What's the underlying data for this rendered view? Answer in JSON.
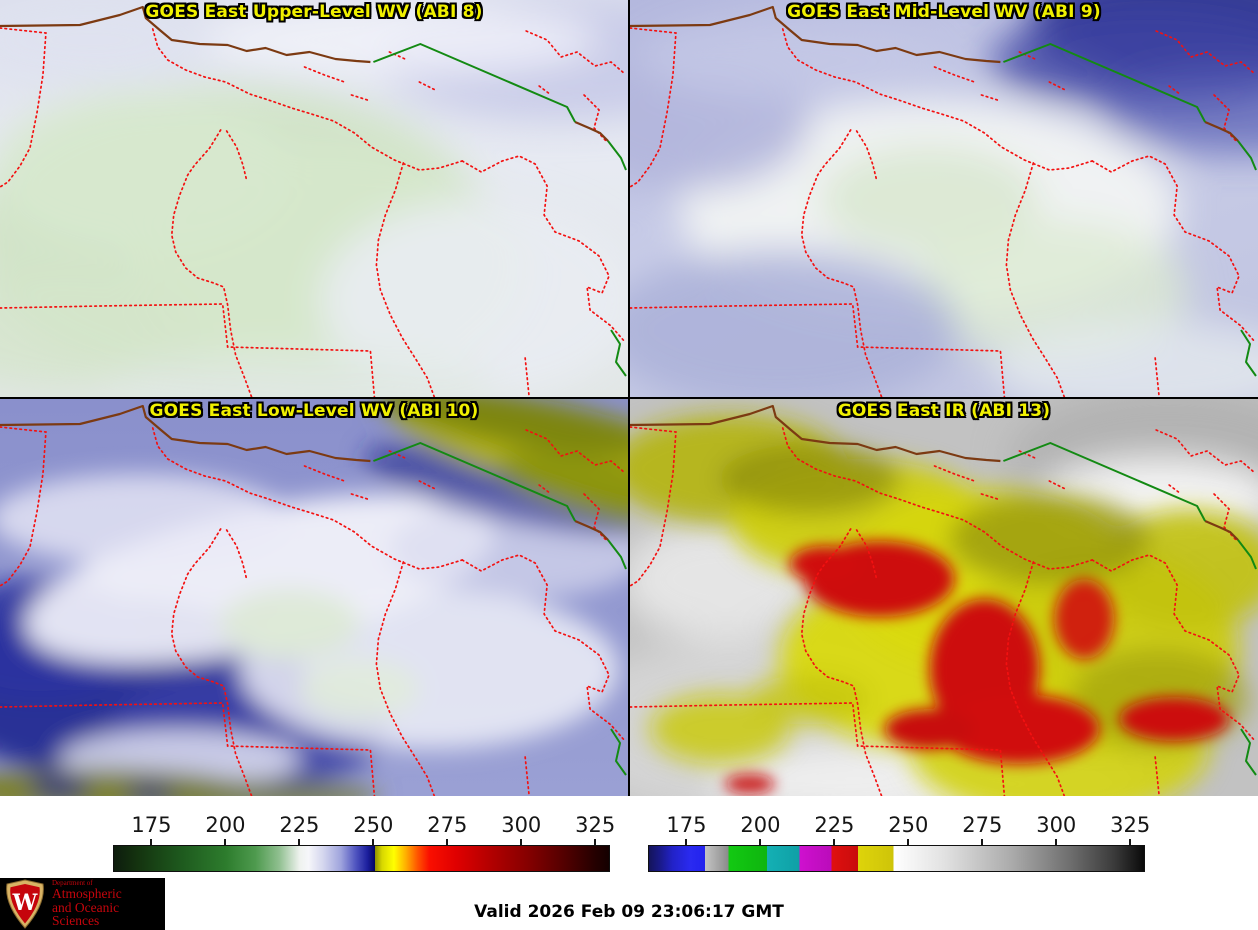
{
  "panels": [
    {
      "title": "GOES East Upper-Level WV (ABI 8)"
    },
    {
      "title": "GOES East Mid-Level WV (ABI 9)"
    },
    {
      "title": "GOES East Low-Level WV (ABI 10)"
    },
    {
      "title": "GOES East IR (ABI 13)"
    }
  ],
  "colorbars": [
    {
      "name": "water-vapor-temperature-scale",
      "range": [
        162,
        330
      ],
      "ticks": [
        "175",
        "200",
        "225",
        "250",
        "275",
        "300",
        "325"
      ],
      "stops": [
        [
          162,
          "#0d1c0d"
        ],
        [
          170,
          "#14330f"
        ],
        [
          185,
          "#1e5a1e"
        ],
        [
          200,
          "#2d7c2d"
        ],
        [
          210,
          "#4e9a4e"
        ],
        [
          218,
          "#8fbf8f"
        ],
        [
          225,
          "#eef2ee"
        ],
        [
          228,
          "#f6f6fa"
        ],
        [
          233,
          "#d4d6ee"
        ],
        [
          239,
          "#9fa4dd"
        ],
        [
          244,
          "#5055c0"
        ],
        [
          248,
          "#1c1f9e"
        ],
        [
          250.5,
          "#050563"
        ],
        [
          250.5,
          "#8f8f00"
        ],
        [
          253,
          "#d8d800"
        ],
        [
          257,
          "#ffff00"
        ],
        [
          261,
          "#ffb000"
        ],
        [
          265,
          "#ff5500"
        ],
        [
          269,
          "#fa0f00"
        ],
        [
          278,
          "#e00000"
        ],
        [
          290,
          "#b20000"
        ],
        [
          302,
          "#870000"
        ],
        [
          315,
          "#520000"
        ],
        [
          325,
          "#260000"
        ],
        [
          330,
          "#140000"
        ]
      ]
    },
    {
      "name": "infrared-temperature-scale",
      "range": [
        162,
        330
      ],
      "ticks": [
        "175",
        "200",
        "225",
        "250",
        "275",
        "300",
        "325"
      ],
      "stops": [
        [
          162,
          "#14145a"
        ],
        [
          166,
          "#1a1a8c"
        ],
        [
          170,
          "#2222c8"
        ],
        [
          176,
          "#2a2af0"
        ],
        [
          181,
          "#2222ee"
        ],
        [
          181,
          "#c4c4c4"
        ],
        [
          185,
          "#a8a8a8"
        ],
        [
          189,
          "#8a8a8a"
        ],
        [
          189,
          "#12c912"
        ],
        [
          202,
          "#0fb50f"
        ],
        [
          202,
          "#14b0b4"
        ],
        [
          213,
          "#0fa0a6"
        ],
        [
          213,
          "#cf10cf"
        ],
        [
          224,
          "#ba0cba"
        ],
        [
          224,
          "#e01010"
        ],
        [
          233,
          "#c80c0c"
        ],
        [
          233,
          "#ded40a"
        ],
        [
          245,
          "#cec409"
        ],
        [
          245,
          "#ffffff"
        ],
        [
          262,
          "#e2e2e2"
        ],
        [
          285,
          "#ababab"
        ],
        [
          305,
          "#6e6e6e"
        ],
        [
          320,
          "#3a3a3a"
        ],
        [
          330,
          "#0a0a0a"
        ]
      ]
    }
  ],
  "footer": {
    "valid_time": "Valid 2026 Feb 09 23:06:17 GMT",
    "logo": {
      "dept_line": "Department of",
      "name_line1": "Atmospheric",
      "name_line2": "and Oceanic Sciences",
      "crest_letter": "W"
    }
  },
  "colors": {
    "title_text": "#f0f000",
    "state_boundary": "#f31111",
    "canada_border": "#138a13",
    "shoreline_brown": "#7c3a12",
    "uw_red": "#c5050c",
    "ir_cold_core_red": "#cd0a0a",
    "ir_cold_yellow": "#d6d60e"
  }
}
